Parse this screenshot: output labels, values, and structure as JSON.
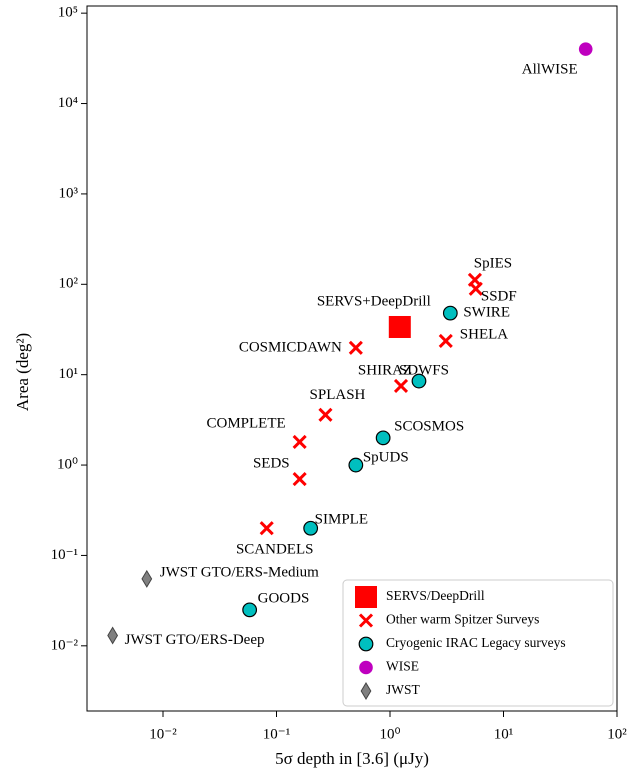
{
  "chart_data": {
    "type": "scatter",
    "x_label": "5σ depth in [3.6] (μJy)",
    "y_label": "Area (deg²)",
    "x_scale": "log",
    "y_scale": "log",
    "xlim": [
      0.00214,
      100
    ],
    "ylim": [
      0.0019,
      120000
    ],
    "xticks": [
      {
        "value": 0.01,
        "label": "10⁻²"
      },
      {
        "value": 0.1,
        "label": "10⁻¹"
      },
      {
        "value": 1,
        "label": "10⁰"
      },
      {
        "value": 10,
        "label": "10¹"
      },
      {
        "value": 100,
        "label": "10²"
      }
    ],
    "yticks": [
      {
        "value": 0.01,
        "label": "10⁻²"
      },
      {
        "value": 0.1,
        "label": "10⁻¹"
      },
      {
        "value": 1,
        "label": "10⁰"
      },
      {
        "value": 10,
        "label": "10¹"
      },
      {
        "value": 100,
        "label": "10²"
      },
      {
        "value": 1000,
        "label": "10³"
      },
      {
        "value": 10000,
        "label": "10⁴"
      },
      {
        "value": 100000,
        "label": "10⁵"
      }
    ],
    "legend": "lower right",
    "series": [
      {
        "name": "SERVS/DeepDrill",
        "color": "#ff0000",
        "marker": "square",
        "x": [
          1.22
        ],
        "values": [
          33.7
        ],
        "labels": [
          "SERVS+DeepDrill"
        ]
      },
      {
        "name": "Other warm Spitzer Surveys",
        "color": "#ff0000",
        "marker": "x",
        "x": [
          5.6,
          5.7,
          3.1,
          0.5,
          1.25,
          0.27,
          0.16,
          0.16,
          0.082
        ],
        "values": [
          112,
          89,
          23.6,
          19.8,
          7.5,
          3.6,
          1.8,
          0.7,
          0.2
        ],
        "labels": [
          "SpIES",
          "SSDF",
          "SHELA",
          "COSMICDAWN",
          "SHIRAZ",
          "SPLASH",
          "COMPLETE",
          "SEDS",
          "SCANDELS"
        ]
      },
      {
        "name": "Cryogenic IRAC Legacy surveys",
        "color": "#00bfbf",
        "marker": "circle",
        "x": [
          3.4,
          1.8,
          0.87,
          0.5,
          0.2,
          0.058
        ],
        "values": [
          48,
          8.5,
          2.0,
          1.0,
          0.2,
          0.025
        ],
        "labels": [
          "SWIRE",
          "SDWFS",
          "SCOSMOS",
          "SpUDS",
          "SIMPLE",
          "GOODS"
        ]
      },
      {
        "name": "WISE",
        "color": "#bf00bf",
        "marker": "circle",
        "x": [
          53
        ],
        "values": [
          40000
        ],
        "labels": [
          "AllWISE"
        ]
      },
      {
        "name": "JWST",
        "color": "#808080",
        "marker": "diamond",
        "x": [
          0.0072,
          0.0036
        ],
        "values": [
          0.055,
          0.013
        ],
        "labels": [
          "JWST GTO/ERS-Medium",
          "JWST GTO/ERS-Deep"
        ]
      }
    ]
  }
}
